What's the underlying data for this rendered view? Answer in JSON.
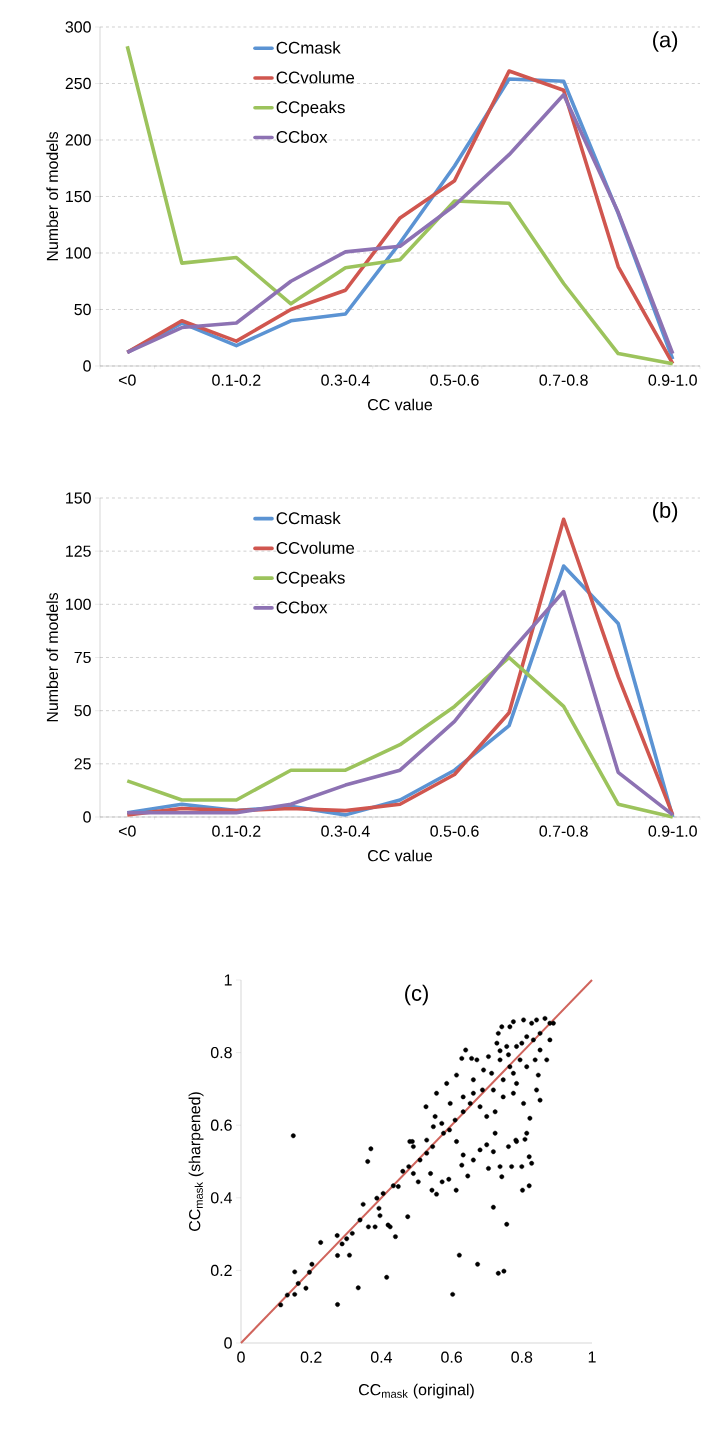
{
  "chart_data": [
    {
      "type": "line",
      "title": "(a)",
      "xlabel": "CC value",
      "ylabel": "Number of models",
      "categories": [
        "<0",
        null,
        "0.1-0.2",
        null,
        "0.3-0.4",
        null,
        "0.5-0.6",
        null,
        "0.7-0.8",
        null,
        "0.9-1.0"
      ],
      "series": [
        {
          "name": "CCmask",
          "color": "#5b93d3",
          "values": [
            12,
            38,
            18,
            40,
            46,
            109,
            177,
            254,
            252,
            135,
            6
          ]
        },
        {
          "name": "CCvolume",
          "color": "#d0564f",
          "values": [
            12,
            40,
            22,
            50,
            67,
            131,
            164,
            261,
            244,
            88,
            2
          ]
        },
        {
          "name": "CCpeaks",
          "color": "#9cc35c",
          "values": [
            283,
            91,
            96,
            55,
            87,
            94,
            146,
            144,
            73,
            11,
            2
          ]
        },
        {
          "name": "CCbox",
          "color": "#8d72b3",
          "values": [
            12,
            34,
            38,
            75,
            101,
            106,
            142,
            187,
            240,
            136,
            11
          ]
        }
      ],
      "ylim": [
        0,
        300
      ],
      "yticks": [
        0,
        50,
        100,
        150,
        200,
        250,
        300
      ],
      "grid": "y",
      "legend": "top",
      "marker": "none",
      "line_style": "solid"
    },
    {
      "type": "line",
      "title": "(b)",
      "xlabel": "CC value",
      "ylabel": "Number of models",
      "categories": [
        "<0",
        null,
        "0.1-0.2",
        null,
        "0.3-0.4",
        null,
        "0.5-0.6",
        null,
        "0.7-0.8",
        null,
        "0.9-1.0"
      ],
      "series": [
        {
          "name": "CCmask",
          "color": "#5b93d3",
          "values": [
            2,
            6,
            3,
            5,
            1,
            8,
            22,
            43,
            118,
            91,
            0
          ]
        },
        {
          "name": "CCvolume",
          "color": "#d0564f",
          "values": [
            1,
            4,
            3,
            4,
            3,
            6,
            20,
            49,
            140,
            66,
            1
          ]
        },
        {
          "name": "CCpeaks",
          "color": "#9cc35c",
          "values": [
            17,
            8,
            8,
            22,
            22,
            34,
            52,
            75,
            52,
            6,
            0
          ]
        },
        {
          "name": "CCbox",
          "color": "#8d72b3",
          "values": [
            2,
            2,
            2,
            6,
            15,
            22,
            45,
            77,
            106,
            21,
            1
          ]
        }
      ],
      "ylim": [
        0,
        150
      ],
      "yticks": [
        0,
        25,
        50,
        75,
        100,
        125,
        150
      ],
      "grid": "y",
      "legend": "top",
      "marker": "none",
      "line_style": "solid"
    },
    {
      "type": "scatter",
      "title": "(c)",
      "xlabel": "CC$_{mask}$ (original)",
      "ylabel": "CC$_{mask}$ (sharpened)",
      "series": [
        {
          "type": "line",
          "color": "#d0645c",
          "marker": "none",
          "x": [
            0,
            1
          ],
          "values": [
            0,
            1
          ]
        },
        {
          "color": "#000000",
          "x": [
            0.149,
            0.113,
            0.132,
            0.153,
            0.153,
            0.163,
            0.185,
            0.195,
            0.202,
            0.227,
            0.274,
            0.275,
            0.275,
            0.288,
            0.301,
            0.309,
            0.317,
            0.334,
            0.339,
            0.348,
            0.361,
            0.37,
            0.363,
            0.382,
            0.387,
            0.393,
            0.396,
            0.415,
            0.419,
            0.425,
            0.44,
            0.405,
            0.434,
            0.448,
            0.461,
            0.475,
            0.478,
            0.491,
            0.505,
            0.51,
            0.481,
            0.529,
            0.54,
            0.544,
            0.557,
            0.573,
            0.592,
            0.603,
            0.613,
            0.622,
            0.646,
            0.629,
            0.633,
            0.662,
            0.674,
            0.681,
            0.7,
            0.719,
            0.733,
            0.749,
            0.757,
            0.743,
            0.738,
            0.762,
            0.771,
            0.783,
            0.8,
            0.809,
            0.821,
            0.828,
            0.802,
            0.821,
            0.814,
            0.785,
            0.719,
            0.705,
            0.724,
            0.614,
            0.594,
            0.572,
            0.548,
            0.529,
            0.488,
            0.491,
            0.553,
            0.527,
            0.557,
            0.586,
            0.614,
            0.64,
            0.629,
            0.657,
            0.672,
            0.691,
            0.662,
            0.633,
            0.596,
            0.653,
            0.681,
            0.7,
            0.724,
            0.747,
            0.776,
            0.805,
            0.823,
            0.842,
            0.847,
            0.852,
            0.871,
            0.88,
            0.88,
            0.866,
            0.89,
            0.842,
            0.828,
            0.805,
            0.776,
            0.766,
            0.743,
            0.733,
            0.729,
            0.757,
            0.785,
            0.814,
            0.833,
            0.852,
            0.852,
            0.795,
            0.766,
            0.738,
            0.714,
            0.776,
            0.814,
            0.785,
            0.747,
            0.719,
            0.688,
            0.662,
            0.633,
            0.61,
            0.577,
            0.546,
            0.838,
            0.8,
            0.762,
            0.738,
            0.705
          ],
          "values": [
            0.571,
            0.105,
            0.132,
            0.196,
            0.134,
            0.164,
            0.151,
            0.195,
            0.217,
            0.277,
            0.296,
            0.241,
            0.106,
            0.273,
            0.287,
            0.242,
            0.302,
            0.152,
            0.339,
            0.382,
            0.5,
            0.535,
            0.32,
            0.32,
            0.399,
            0.371,
            0.351,
            0.181,
            0.325,
            0.32,
            0.293,
            0.412,
            0.433,
            0.431,
            0.473,
            0.348,
            0.486,
            0.467,
            0.444,
            0.504,
            0.555,
            0.523,
            0.467,
            0.421,
            0.41,
            0.444,
            0.451,
            0.134,
            0.421,
            0.242,
            0.46,
            0.49,
            0.518,
            0.504,
            0.217,
            0.532,
            0.546,
            0.374,
            0.192,
            0.198,
            0.327,
            0.458,
            0.486,
            0.541,
            0.486,
            0.559,
            0.486,
            0.561,
            0.513,
            0.495,
            0.421,
            0.433,
            0.578,
            0.555,
            0.527,
            0.481,
            0.578,
            0.555,
            0.587,
            0.605,
            0.596,
            0.559,
            0.555,
            0.541,
            0.624,
            0.651,
            0.688,
            0.715,
            0.738,
            0.807,
            0.784,
            0.784,
            0.78,
            0.752,
            0.725,
            0.678,
            0.66,
            0.66,
            0.651,
            0.624,
            0.637,
            0.678,
            0.688,
            0.66,
            0.619,
            0.697,
            0.738,
            0.669,
            0.78,
            0.835,
            0.881,
            0.894,
            0.881,
            0.89,
            0.881,
            0.89,
            0.885,
            0.871,
            0.871,
            0.853,
            0.826,
            0.817,
            0.817,
            0.844,
            0.835,
            0.807,
            0.853,
            0.78,
            0.761,
            0.78,
            0.743,
            0.743,
            0.761,
            0.715,
            0.725,
            0.697,
            0.697,
            0.688,
            0.637,
            0.614,
            0.578,
            0.541,
            0.78,
            0.826,
            0.794,
            0.805,
            0.789
          ]
        }
      ],
      "xlim": [
        0,
        1
      ],
      "xticks": [
        0,
        0.2,
        0.4,
        0.6,
        0.8,
        1
      ],
      "ylim": [
        0,
        1
      ],
      "yticks": [
        0,
        0.2,
        0.4,
        0.6,
        0.8,
        1
      ],
      "marker": "circle"
    }
  ]
}
